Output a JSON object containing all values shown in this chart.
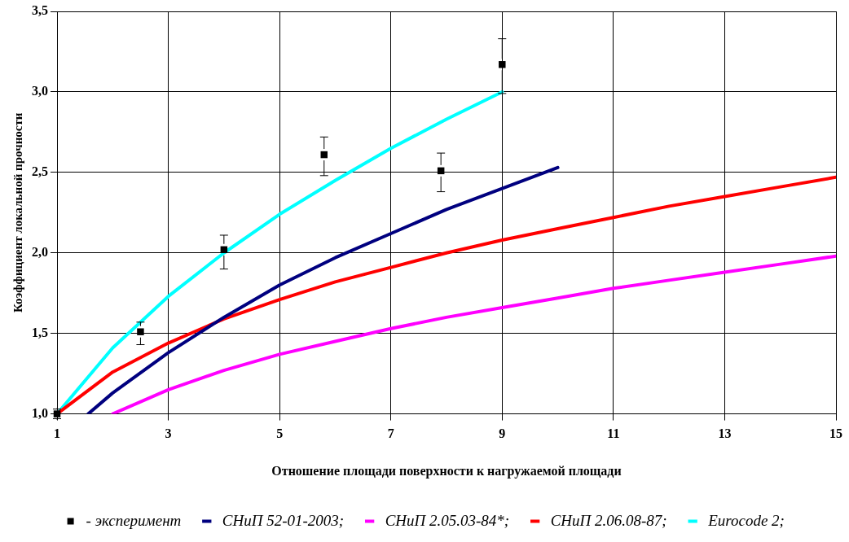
{
  "chart_data": {
    "type": "line",
    "xlabel": "Отношение площади поверхности к нагружаемой площади",
    "ylabel": "Коэффициент локальной прочности",
    "xlim": [
      1,
      15
    ],
    "xticks": [
      1,
      3,
      5,
      7,
      9,
      11,
      13,
      15
    ],
    "ylim": [
      1,
      3.5
    ],
    "yticks": [
      {
        "value": 1,
        "label": "1,0"
      },
      {
        "value": 1.5,
        "label": "1,5"
      },
      {
        "value": 2,
        "label": "2,0"
      },
      {
        "value": 2.5,
        "label": "2,5"
      },
      {
        "value": 3,
        "label": "3,0"
      },
      {
        "value": 3.5,
        "label": "3,5"
      }
    ],
    "grid": true,
    "legend": "bottom",
    "line_style": "solid",
    "series": [
      {
        "name": "СНиП 52-01-2003;",
        "color": "#00007f",
        "x": [
          1.56,
          2,
          3,
          4,
          5,
          6,
          7,
          8,
          9,
          10
        ],
        "values": [
          1.0,
          1.13,
          1.38,
          1.6,
          1.8,
          1.97,
          2.12,
          2.27,
          2.4,
          2.53
        ]
      },
      {
        "name": "СНиП 2.05.03-84*;",
        "color": "#ff00ff",
        "x": [
          2,
          3,
          4,
          5,
          6,
          7,
          8,
          9,
          10,
          11,
          12,
          13,
          14,
          15
        ],
        "values": [
          1.0,
          1.15,
          1.27,
          1.37,
          1.45,
          1.53,
          1.6,
          1.66,
          1.72,
          1.78,
          1.83,
          1.88,
          1.93,
          1.98
        ]
      },
      {
        "name": "СНиП 2.06.08-87;",
        "color": "#ff0000",
        "x": [
          1,
          2,
          3,
          4,
          5,
          6,
          7,
          8,
          9,
          10,
          11,
          12,
          13,
          14,
          15
        ],
        "values": [
          1.0,
          1.26,
          1.44,
          1.59,
          1.71,
          1.82,
          1.91,
          2.0,
          2.08,
          2.15,
          2.22,
          2.29,
          2.35,
          2.41,
          2.47
        ]
      },
      {
        "name": "Eurocode 2;",
        "color": "#00ffff",
        "x": [
          1,
          2,
          3,
          4,
          5,
          6,
          7,
          8,
          9
        ],
        "values": [
          1.0,
          1.41,
          1.73,
          2.0,
          2.24,
          2.45,
          2.65,
          2.83,
          3.0
        ]
      },
      {
        "name": "- эксперимент",
        "type": "scatter",
        "marker": "square",
        "color": "#000000",
        "x": [
          1,
          2.5,
          4,
          5.8,
          7.9,
          9
        ],
        "values": [
          1.0,
          1.51,
          2.02,
          2.61,
          2.51,
          3.17
        ],
        "errors": [
          0.03,
          [
            1.43,
            1.57
          ],
          [
            1.9,
            2.11
          ],
          [
            2.48,
            2.72
          ],
          [
            2.38,
            2.62
          ],
          [
            2.99,
            3.33
          ]
        ]
      }
    ]
  }
}
